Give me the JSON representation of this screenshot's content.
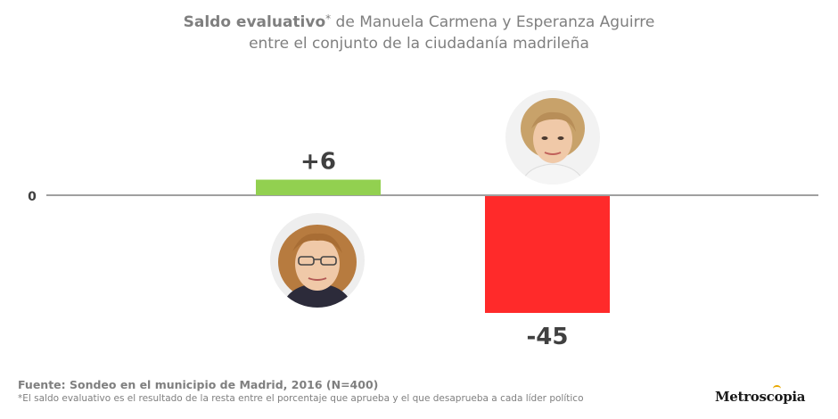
{
  "title": {
    "bold": "Saldo evaluativo",
    "asterisk": "*",
    "rest_line1": " de Manuela Carmena y Esperanza Aguirre",
    "line2": "entre el conjunto de la ciudadanía madrileña"
  },
  "chart_data": {
    "type": "bar",
    "categories": [
      "Manuela Carmena",
      "Esperanza Aguirre"
    ],
    "values": [
      6,
      -45
    ],
    "data_labels": [
      "+6",
      "-45"
    ],
    "colors": [
      "#92d050",
      "#ff2a2a"
    ],
    "zero_label": "0",
    "ylim": [
      -50,
      20
    ],
    "grid": false
  },
  "footer": {
    "source": "Fuente: Sondeo en el municipio de Madrid, 2016 (N=400)",
    "note": "*El saldo evaluativo es el resultado de la resta entre el porcentaje que aprueba y el que desaprueba a cada líder político"
  },
  "brand": {
    "name_start": "Metrosc",
    "name_o": "o",
    "name_end": "pia",
    "accent": "#e8a800"
  },
  "avatars": [
    {
      "icon": "manuela-carmena-photo-icon",
      "hair": "#b77b3f"
    },
    {
      "icon": "esperanza-aguirre-photo-icon",
      "hair": "#c8a26a"
    }
  ]
}
